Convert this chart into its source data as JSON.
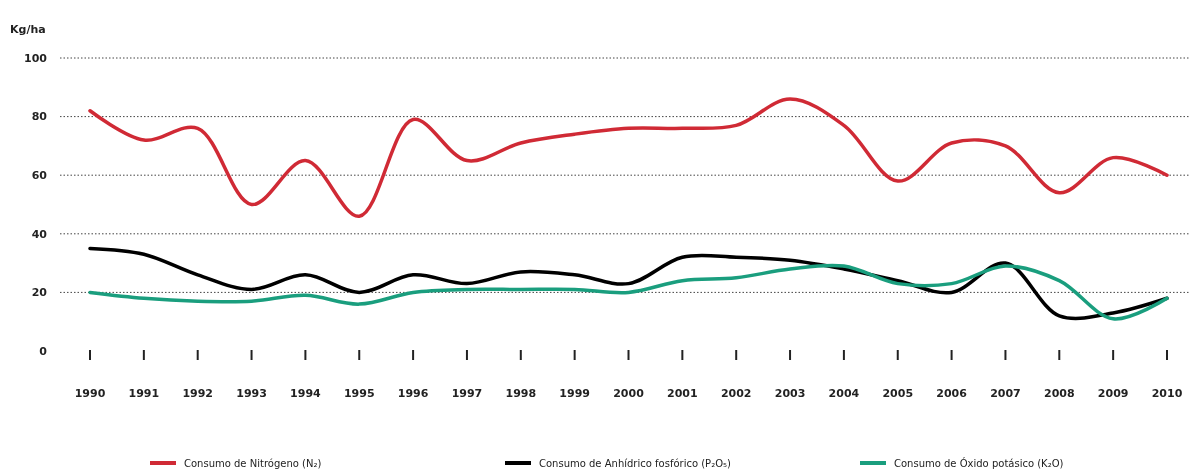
{
  "chart_data": {
    "type": "line",
    "ylabel": "Kg/ha",
    "categories": [
      "1990",
      "1991",
      "1992",
      "1993",
      "1994",
      "1995",
      "1996",
      "1997",
      "1998",
      "1999",
      "2000",
      "2001",
      "2002",
      "2003",
      "2004",
      "2005",
      "2006",
      "2007",
      "2008",
      "2009",
      "2010"
    ],
    "series": [
      {
        "name": "Consumo de Nitrógeno (N₂)",
        "color": "#d02a35",
        "values": [
          82,
          72,
          76,
          50,
          65,
          46,
          79,
          65,
          71,
          74,
          76,
          76,
          77,
          86,
          77,
          58,
          71,
          70,
          54,
          66,
          60
        ]
      },
      {
        "name": "Consumo de Anhídrico fosfórico (P₂O₅)",
        "color": "#000000",
        "values": [
          35,
          33,
          26,
          21,
          26,
          20,
          26,
          23,
          27,
          26,
          23,
          32,
          32,
          31,
          28,
          24,
          20,
          30,
          12,
          13,
          18
        ]
      },
      {
        "name": "Consumo de Óxido potásico (K₂O)",
        "color": "#1a9e7e",
        "values": [
          20,
          18,
          17,
          17,
          19,
          16,
          20,
          21,
          21,
          21,
          20,
          24,
          25,
          28,
          29,
          23,
          23,
          29,
          24,
          11,
          18
        ]
      }
    ],
    "ylim": [
      0,
      100
    ],
    "yticks": [
      0,
      20,
      40,
      60,
      80,
      100
    ],
    "grid": "y",
    "legend": "bottom",
    "line_style": "solid",
    "marker": "none"
  }
}
